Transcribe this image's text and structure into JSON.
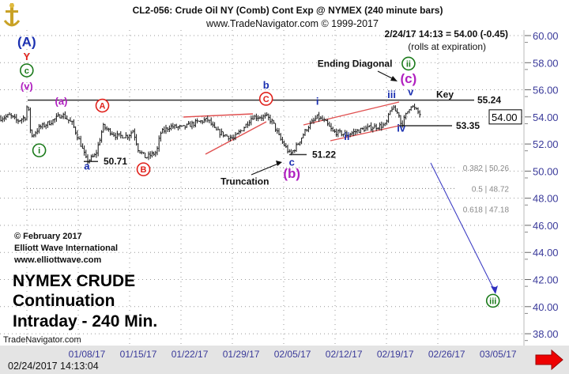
{
  "header": {
    "title": "CL2-056:  Crude Oil NY (Comb) Cont Exp @ NYMEX  (240 minute bars)",
    "subtitle": "www.TradeNavigator.com © 1999-2017",
    "last_quote": "2/24/17 14:13 = 54.00 (-0.45)",
    "rolls_note": "(rolls at expiration)"
  },
  "footer": {
    "timestamp": "02/24/2017 14:13:04",
    "watermark": "TradeNavigator.com",
    "copyright": "© February 2017",
    "company": "Elliott Wave International",
    "website": "www.elliottwave.com",
    "caption_line1": "NYMEX CRUDE",
    "caption_line2": "Continuation",
    "caption_line3": "Intraday - 240 Min."
  },
  "colors": {
    "blue": "#1a2fb0",
    "red": "#e0201a",
    "green": "#1a7a1a",
    "magenta": "#b020c0",
    "trend": "#e05050",
    "arrow": "#3030c0"
  },
  "chart_data": {
    "type": "ohlc",
    "title": "CL2-056: Crude Oil NY (Comb) Cont Exp @ NYMEX (240 minute bars)",
    "xlabel": "",
    "ylabel": "",
    "x_unit": "days since 01/08/17",
    "ylim": [
      37,
      61
    ],
    "y_ticks": [
      "60.00",
      "58.00",
      "56.00",
      "54.00",
      "52.00",
      "50.00",
      "48.00",
      "46.00",
      "44.00",
      "42.00",
      "40.00",
      "38.00"
    ],
    "x_ticks": [
      "01/08/17",
      "01/15/17",
      "01/22/17",
      "01/29/17",
      "02/05/17",
      "02/12/17",
      "02/19/17",
      "02/26/17",
      "03/05/17"
    ],
    "last_price_label": "54.00",
    "price_path": [
      [
        -11.8,
        53.9
      ],
      [
        -10.5,
        54.1
      ],
      [
        -9.5,
        53.7
      ],
      [
        -8.3,
        54.0
      ],
      [
        -8.1,
        55.24
      ],
      [
        -7.6,
        52.5
      ],
      [
        -6.5,
        53.2
      ],
      [
        -5,
        53.6
      ],
      [
        -3.4,
        54.2
      ],
      [
        -2,
        53.5
      ],
      [
        -1,
        52.2
      ],
      [
        0,
        50.71
      ],
      [
        1.2,
        51.2
      ],
      [
        2.2,
        53.3
      ],
      [
        4,
        52.6
      ],
      [
        5.6,
        52.6
      ],
      [
        6.3,
        53.0
      ],
      [
        7,
        51.6
      ],
      [
        8,
        51.0
      ],
      [
        9.5,
        51.4
      ],
      [
        10,
        52.8
      ],
      [
        11.3,
        53.3
      ],
      [
        13,
        53.2
      ],
      [
        15,
        53.6
      ],
      [
        16.5,
        53.8
      ],
      [
        17.5,
        53.0
      ],
      [
        19,
        52.6
      ],
      [
        20,
        52.4
      ],
      [
        21.5,
        53.3
      ],
      [
        22.5,
        54.0
      ],
      [
        24.5,
        54.0
      ],
      [
        25.3,
        53.6
      ],
      [
        26.3,
        52.4
      ],
      [
        27.7,
        51.22
      ],
      [
        28.5,
        51.8
      ],
      [
        30,
        53.2
      ],
      [
        31.4,
        54.0
      ],
      [
        32.5,
        53.6
      ],
      [
        33.5,
        52.9
      ],
      [
        35.5,
        52.7
      ],
      [
        37,
        53.0
      ],
      [
        38.5,
        53.2
      ],
      [
        40.7,
        53.4
      ],
      [
        41.5,
        54.7
      ],
      [
        42.5,
        54.2
      ],
      [
        42.8,
        53.35
      ],
      [
        44.1,
        54.9
      ],
      [
        45,
        54.4
      ],
      [
        45.7,
        54.0
      ]
    ],
    "levels": [
      {
        "name": "key",
        "label": "55.24",
        "value": 55.24,
        "tag": "Key"
      },
      {
        "name": "support",
        "label": "53.35",
        "value": 53.35
      },
      {
        "name": "low-a",
        "label": "50.71",
        "value": 50.71
      },
      {
        "name": "low-c",
        "label": "51.22",
        "value": 51.22
      }
    ],
    "fib_levels": [
      {
        "label": "0.382 | 50.26",
        "value": 50.26
      },
      {
        "label": "0.5 | 48.72",
        "value": 48.72
      },
      {
        "label": "0.618 | 47.18",
        "value": 47.18
      }
    ],
    "wave_labels": [
      {
        "text": "(A)",
        "day": -8.2,
        "price": 59.2,
        "color": "blue",
        "style": "plain",
        "size": "big"
      },
      {
        "text": "Y",
        "day": -8.2,
        "price": 58.2,
        "color": "red",
        "style": "plain"
      },
      {
        "text": "c",
        "day": -8.2,
        "price": 57.2,
        "color": "green",
        "style": "circle"
      },
      {
        "text": "(v)",
        "day": -8.2,
        "price": 56.0,
        "color": "magenta",
        "style": "plain"
      },
      {
        "text": "i",
        "day": -6.5,
        "price": 51.3,
        "color": "green",
        "style": "circle"
      },
      {
        "text": "(a)",
        "day": -3.5,
        "price": 54.9,
        "color": "magenta",
        "style": "plain"
      },
      {
        "text": "a",
        "day": 0,
        "price": 50.1,
        "color": "blue",
        "style": "plain"
      },
      {
        "text": "A",
        "day": 2.1,
        "price": 54.6,
        "color": "red",
        "style": "circle"
      },
      {
        "text": "B",
        "day": 7.7,
        "price": 49.9,
        "color": "red",
        "style": "circle"
      },
      {
        "text": "b",
        "day": 24.4,
        "price": 56.1,
        "color": "blue",
        "style": "plain"
      },
      {
        "text": "C",
        "day": 24.4,
        "price": 55.1,
        "color": "red",
        "style": "circle"
      },
      {
        "text": "c",
        "day": 27.9,
        "price": 50.4,
        "color": "blue",
        "style": "plain"
      },
      {
        "text": "(b)",
        "day": 27.9,
        "price": 49.5,
        "color": "magenta",
        "style": "plain",
        "size": "big"
      },
      {
        "text": "i",
        "day": 31.4,
        "price": 54.9,
        "color": "blue",
        "style": "plain"
      },
      {
        "text": "ii",
        "day": 35.4,
        "price": 52.3,
        "color": "blue",
        "style": "plain"
      },
      {
        "text": "iii",
        "day": 41.5,
        "price": 55.4,
        "color": "blue",
        "style": "plain"
      },
      {
        "text": "iv",
        "day": 42.8,
        "price": 52.9,
        "color": "blue",
        "style": "plain"
      },
      {
        "text": "v",
        "day": 44.1,
        "price": 55.6,
        "color": "blue",
        "style": "plain"
      },
      {
        "text": "(c)",
        "day": 43.8,
        "price": 56.5,
        "color": "magenta",
        "style": "plain",
        "size": "big"
      },
      {
        "text": "ii",
        "day": 43.8,
        "price": 57.7,
        "color": "green",
        "style": "circle"
      },
      {
        "text": "iii",
        "day": 55.3,
        "price": 40.2,
        "color": "green",
        "style": "circle"
      }
    ],
    "annotations": [
      {
        "text": "Ending Diagonal",
        "day": 36.5,
        "price": 57.7
      },
      {
        "text": "Truncation",
        "day": 21.5,
        "price": 49.0
      }
    ],
    "legend": "none",
    "grid": true
  }
}
